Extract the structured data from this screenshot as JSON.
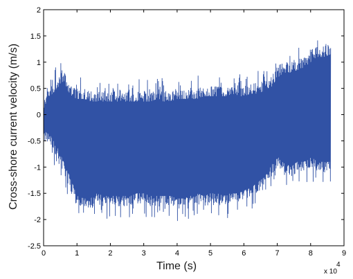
{
  "chart_data": {
    "type": "line",
    "title": "",
    "xlabel": "Time (s)",
    "ylabel": "Cross-shore current velocity (m/s)",
    "xlim": [
      0,
      90000
    ],
    "ylim": [
      -2.5,
      2
    ],
    "grid": false,
    "x_scale_label": "x 10",
    "x_scale_exponent": "4",
    "x_ticks": [
      0,
      1,
      2,
      3,
      4,
      5,
      6,
      7,
      8,
      9
    ],
    "x_tick_labels": [
      "0",
      "1",
      "2",
      "3",
      "4",
      "5",
      "6",
      "7",
      "8",
      "9"
    ],
    "y_ticks": [
      -2.5,
      -2,
      -1.5,
      -1,
      -0.5,
      0,
      0.5,
      1,
      1.5,
      2
    ],
    "y_tick_labels": [
      "-2.5",
      "-2",
      "-1.5",
      "-1",
      "-0.5",
      "0",
      "0.5",
      "1",
      "1.5",
      "2"
    ],
    "series_color": "#3152a5",
    "series": [
      {
        "x": [
          0,
          2000,
          4000,
          6000,
          8000,
          10000,
          12000,
          14000,
          16000,
          18000,
          20000,
          22000,
          24000,
          26000,
          28000,
          30000,
          32000,
          34000,
          36000,
          38000,
          40000,
          42000,
          44000,
          46000,
          48000,
          50000,
          52000,
          54000,
          56000,
          58000,
          60000,
          62000,
          64000,
          66000,
          68000,
          70000,
          72000,
          74000,
          76000,
          78000,
          80000,
          82000,
          84000,
          86000
        ],
        "upper_envelope": [
          0.3,
          0.55,
          0.7,
          0.85,
          0.55,
          0.5,
          0.5,
          0.45,
          0.45,
          0.45,
          0.45,
          0.45,
          0.45,
          0.45,
          0.45,
          0.45,
          0.45,
          0.5,
          0.45,
          0.45,
          0.5,
          0.5,
          0.5,
          0.5,
          0.55,
          0.55,
          0.55,
          0.55,
          0.55,
          0.55,
          0.55,
          0.6,
          0.6,
          0.65,
          0.7,
          0.9,
          1.0,
          1.0,
          1.05,
          1.1,
          1.2,
          1.3,
          1.3,
          1.35
        ],
        "lower_envelope": [
          -0.5,
          -0.6,
          -0.8,
          -1.1,
          -1.4,
          -1.7,
          -1.8,
          -1.8,
          -1.7,
          -1.75,
          -1.75,
          -1.75,
          -1.75,
          -1.75,
          -1.7,
          -1.7,
          -1.75,
          -1.75,
          -1.75,
          -1.75,
          -1.8,
          -1.8,
          -1.75,
          -1.7,
          -1.75,
          -1.7,
          -1.7,
          -1.75,
          -1.7,
          -1.7,
          -1.65,
          -1.6,
          -1.5,
          -1.4,
          -1.2,
          -1.0,
          -1.1,
          -1.2,
          -1.1,
          -1.1,
          -1.0,
          -1.1,
          -1.1,
          -1.1
        ]
      }
    ]
  }
}
